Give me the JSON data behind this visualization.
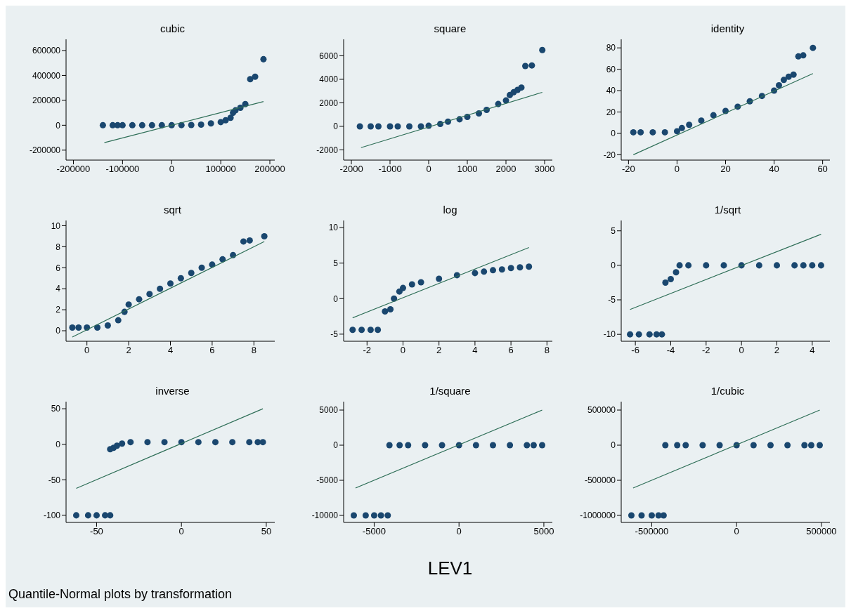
{
  "chart_data": [
    {
      "type": "scatter",
      "title": "cubic",
      "marker": "circle",
      "xlim": [
        -215000,
        210000
      ],
      "xticks": [
        -200000,
        -100000,
        0,
        100000,
        200000
      ],
      "ylim": [
        -280000,
        690000
      ],
      "yticks": [
        -200000,
        0,
        200000,
        400000,
        600000
      ],
      "series": [
        {
          "color": "#1a476f",
          "x": [
            -140000,
            -120000,
            -110000,
            -100000,
            -80000,
            -60000,
            -40000,
            -20000,
            0,
            20000,
            40000,
            60000,
            80000,
            100000,
            110000,
            120000,
            125000,
            130000,
            140000,
            150000,
            160000,
            170000,
            187000
          ],
          "values": [
            0,
            0,
            0,
            0,
            0,
            0,
            0,
            0,
            0,
            1000,
            2000,
            5000,
            15000,
            25000,
            40000,
            60000,
            100000,
            120000,
            140000,
            170000,
            370000,
            390000,
            530000
          ]
        },
        {
          "type": "line",
          "marker": "none",
          "color": "#2e6e57",
          "x": [
            -137000,
            187000
          ],
          "values": [
            -140000,
            190000
          ]
        }
      ]
    },
    {
      "type": "scatter",
      "title": "square",
      "marker": "circle",
      "xlim": [
        -2200,
        3200
      ],
      "xticks": [
        -2000,
        -1000,
        0,
        1000,
        2000,
        3000
      ],
      "ylim": [
        -2870,
        7400
      ],
      "yticks": [
        -2000,
        0,
        2000,
        4000,
        6000
      ],
      "series": [
        {
          "color": "#1a476f",
          "x": [
            -1780,
            -1500,
            -1300,
            -1000,
            -800,
            -500,
            -200,
            0,
            300,
            500,
            800,
            1000,
            1300,
            1500,
            1800,
            2000,
            2100,
            2200,
            2300,
            2400,
            2500,
            2670,
            2940
          ],
          "values": [
            0,
            0,
            0,
            0,
            0,
            0,
            0,
            50,
            200,
            400,
            600,
            800,
            1100,
            1400,
            1900,
            2200,
            2660,
            2900,
            3100,
            3300,
            5130,
            5180,
            6490
          ]
        },
        {
          "type": "line",
          "marker": "none",
          "color": "#2e6e57",
          "x": [
            -1750,
            2940
          ],
          "values": [
            -1810,
            2890
          ]
        }
      ]
    },
    {
      "type": "scatter",
      "title": "identity",
      "marker": "circle",
      "xlim": [
        -23,
        63
      ],
      "xticks": [
        -20,
        0,
        20,
        40,
        60
      ],
      "ylim": [
        -25,
        88
      ],
      "yticks": [
        -20,
        0,
        20,
        40,
        60,
        80
      ],
      "series": [
        {
          "color": "#1a476f",
          "x": [
            -18,
            -15,
            -10,
            -5,
            0,
            2,
            5,
            10,
            15,
            20,
            25,
            30,
            35,
            40,
            42,
            44,
            46,
            48,
            50,
            52,
            56
          ],
          "values": [
            1,
            1,
            1,
            1,
            2,
            5,
            8,
            12,
            17,
            21,
            25,
            30,
            35,
            40,
            45,
            50,
            53,
            55,
            72,
            73,
            80
          ]
        },
        {
          "type": "line",
          "marker": "none",
          "color": "#2e6e57",
          "x": [
            -18,
            56
          ],
          "values": [
            -20,
            56
          ]
        }
      ]
    },
    {
      "type": "scatter",
      "title": "sqrt",
      "marker": "circle",
      "xlim": [
        -1,
        9
      ],
      "xticks": [
        0,
        2,
        4,
        6,
        8
      ],
      "ylim": [
        -1,
        10.5
      ],
      "yticks": [
        0,
        2,
        4,
        6,
        8,
        10
      ],
      "series": [
        {
          "color": "#1a476f",
          "x": [
            -0.7,
            -0.4,
            0,
            0.5,
            1,
            1.5,
            1.8,
            2,
            2.5,
            3,
            3.5,
            4,
            4.5,
            5,
            5.5,
            6,
            6.5,
            7,
            7.5,
            7.8,
            8.5
          ],
          "values": [
            0.3,
            0.3,
            0.3,
            0.3,
            0.5,
            1,
            1.8,
            2.5,
            3,
            3.5,
            4,
            4.5,
            5,
            5.5,
            6,
            6.3,
            6.8,
            7.2,
            8.5,
            8.6,
            9
          ]
        },
        {
          "type": "line",
          "marker": "none",
          "color": "#2e6e57",
          "x": [
            -0.7,
            8.5
          ],
          "values": [
            -0.6,
            8.5
          ]
        }
      ]
    },
    {
      "type": "scatter",
      "title": "log",
      "marker": "circle",
      "xlim": [
        -3.3,
        8.3
      ],
      "xticks": [
        -2,
        0,
        2,
        4,
        6,
        8
      ],
      "ylim": [
        -6,
        11
      ],
      "yticks": [
        -5,
        0,
        5,
        10
      ],
      "series": [
        {
          "color": "#1a476f",
          "x": [
            -2.8,
            -2.3,
            -1.8,
            -1.4,
            -1,
            -0.7,
            -0.5,
            -0.2,
            0,
            0.5,
            1,
            2,
            3,
            4,
            4.5,
            5,
            5.5,
            6,
            6.5,
            7
          ],
          "values": [
            -4.4,
            -4.4,
            -4.4,
            -4.4,
            -1.8,
            -1.5,
            0,
            1,
            1.5,
            2,
            2.3,
            2.8,
            3.3,
            3.6,
            3.8,
            4,
            4.1,
            4.3,
            4.4,
            4.5
          ]
        },
        {
          "type": "line",
          "marker": "none",
          "color": "#2e6e57",
          "x": [
            -2.8,
            7
          ],
          "values": [
            -2.7,
            7.2
          ]
        }
      ]
    },
    {
      "type": "scatter",
      "title": "1/sqrt",
      "marker": "circle",
      "xlim": [
        -6.8,
        5
      ],
      "xticks": [
        -6,
        -4,
        -2,
        0,
        2,
        4
      ],
      "ylim": [
        -11,
        6.5
      ],
      "yticks": [
        -10,
        -5,
        0,
        5
      ],
      "series": [
        {
          "color": "#1a476f",
          "x": [
            -6.3,
            -5.8,
            -5.2,
            -4.8,
            -4.5,
            -4.3,
            -4,
            -3.7,
            -3.5,
            -3,
            -2,
            -1,
            0,
            1,
            2,
            3,
            3.5,
            4,
            4.5
          ],
          "values": [
            -10,
            -10,
            -10,
            -10,
            -10,
            -2.5,
            -2,
            -1,
            0,
            0,
            0,
            0,
            0,
            0,
            0,
            0,
            0,
            0,
            0
          ]
        },
        {
          "type": "line",
          "marker": "none",
          "color": "#2e6e57",
          "x": [
            -6.3,
            4.5
          ],
          "values": [
            -6.4,
            4.5
          ]
        }
      ]
    },
    {
      "type": "scatter",
      "title": "inverse",
      "marker": "circle",
      "xlim": [
        -68,
        55
      ],
      "xticks": [
        -50,
        0,
        50
      ],
      "ylim": [
        -110,
        60
      ],
      "yticks": [
        -100,
        -50,
        0,
        50
      ],
      "annotations": [
        "Quantile-Normal plots by transformation"
      ],
      "series": [
        {
          "color": "#1a476f",
          "x": [
            -62,
            -55,
            -50,
            -45,
            -42,
            -42,
            -40,
            -38,
            -35,
            -30,
            -20,
            -10,
            0,
            10,
            20,
            30,
            40,
            45,
            48
          ],
          "values": [
            -100,
            -100,
            -100,
            -100,
            -100,
            -7,
            -5,
            -2,
            1,
            3,
            3,
            3,
            3,
            3,
            3,
            3,
            3,
            3,
            3
          ]
        },
        {
          "type": "line",
          "marker": "none",
          "color": "#2e6e57",
          "x": [
            -62,
            48
          ],
          "values": [
            -62,
            50
          ]
        }
      ]
    },
    {
      "type": "scatter",
      "title": "1/square",
      "xlabel": "LEV1",
      "marker": "circle",
      "xlim": [
        -6800,
        5500
      ],
      "xticks": [
        -5000,
        0,
        5000
      ],
      "ylim": [
        -11000,
        6200
      ],
      "yticks": [
        -10000,
        -5000,
        0,
        5000
      ],
      "series": [
        {
          "color": "#1a476f",
          "x": [
            -6200,
            -5500,
            -5000,
            -4600,
            -4200,
            -4100,
            -3500,
            -3000,
            -2000,
            -1000,
            0,
            1000,
            2000,
            3000,
            4000,
            4400,
            4900
          ],
          "values": [
            -10000,
            -10000,
            -10000,
            -10000,
            -10000,
            0,
            0,
            0,
            0,
            0,
            0,
            0,
            0,
            0,
            0,
            0,
            0
          ]
        },
        {
          "type": "line",
          "marker": "none",
          "color": "#2e6e57",
          "x": [
            -6100,
            4900
          ],
          "values": [
            -6100,
            5000
          ]
        }
      ]
    },
    {
      "type": "scatter",
      "title": "1/cubic",
      "marker": "circle",
      "xlim": [
        -680000,
        550000
      ],
      "xticks": [
        -500000,
        0,
        500000
      ],
      "ylim": [
        -1100000,
        620000
      ],
      "yticks": [
        -1000000,
        -500000,
        0,
        500000
      ],
      "series": [
        {
          "color": "#1a476f",
          "x": [
            -620000,
            -560000,
            -500000,
            -460000,
            -430000,
            -420000,
            -350000,
            -300000,
            -200000,
            -100000,
            0,
            100000,
            200000,
            300000,
            400000,
            440000,
            490000
          ],
          "values": [
            -1000000,
            -1000000,
            -1000000,
            -1000000,
            -1000000,
            0,
            0,
            0,
            0,
            0,
            0,
            0,
            0,
            0,
            0,
            0,
            0
          ]
        },
        {
          "type": "line",
          "marker": "none",
          "color": "#2e6e57",
          "x": [
            -610000,
            490000
          ],
          "values": [
            -610000,
            500000
          ]
        }
      ]
    }
  ]
}
